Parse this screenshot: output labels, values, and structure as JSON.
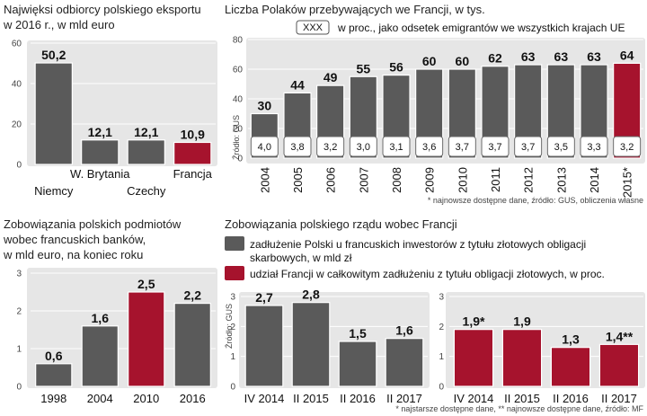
{
  "colors": {
    "gray": "#5a5a5a",
    "red": "#a6132d",
    "panel": "#e6e6e6",
    "grid": "#ffffff"
  },
  "chart_data": [
    {
      "id": "exports",
      "type": "bar",
      "title_lines": [
        "Najwięksi odbiorcy polskiego eksportu",
        "w 2016 r., w mld euro"
      ],
      "ylim": [
        0,
        60
      ],
      "yticks": [
        0,
        20,
        40,
        60
      ],
      "categories": [
        "Niemcy",
        "W. Brytania",
        "Czechy",
        "Francja"
      ],
      "values": [
        50.2,
        12.1,
        12.1,
        10.9
      ],
      "value_labels": [
        "50,2",
        "12,1",
        "12,1",
        "10,9"
      ],
      "highlight": [
        false,
        false,
        false,
        true
      ]
    },
    {
      "id": "poles_in_france",
      "type": "bar",
      "title_lines": [
        "Liczba Polaków przebywających we Francji, w tys."
      ],
      "legend_box": "XXX",
      "legend_text": "w proc., jako odsetek emigrantów we wszystkich krajach UE",
      "source_vertical": "Źródło: GUS",
      "ylim": [
        0,
        80
      ],
      "yticks": [
        0,
        20,
        40,
        60,
        80
      ],
      "categories": [
        "2004",
        "2005",
        "2006",
        "2007",
        "2008",
        "2009",
        "2010",
        "2011",
        "2012",
        "2013",
        "2014",
        "2015*"
      ],
      "values": [
        30,
        44,
        49,
        55,
        56,
        60,
        60,
        62,
        63,
        63,
        63,
        64
      ],
      "value_labels": [
        "30",
        "44",
        "49",
        "55",
        "56",
        "60",
        "60",
        "62",
        "63",
        "63",
        "63",
        "64"
      ],
      "percent_labels": [
        "4,0",
        "3,8",
        "3,2",
        "3,0",
        "3,1",
        "3,6",
        "3,7",
        "3,7",
        "3,7",
        "3,5",
        "3,3",
        "3,2"
      ],
      "highlight": [
        false,
        false,
        false,
        false,
        false,
        false,
        false,
        false,
        false,
        false,
        false,
        true
      ],
      "footnote": "* najnowsze dostępne dane, źródło: GUS, obliczenia własne"
    },
    {
      "id": "bank_liabilities",
      "type": "bar",
      "title_lines": [
        "Zobowiązania polskich podmiotów",
        "wobec francuskich banków,",
        "w mld euro, na koniec roku"
      ],
      "ylim": [
        0,
        3
      ],
      "yticks": [
        0,
        1,
        2,
        3
      ],
      "categories": [
        "1998",
        "2004",
        "2010",
        "2016"
      ],
      "values": [
        0.6,
        1.6,
        2.5,
        2.2
      ],
      "value_labels": [
        "0,6",
        "1,6",
        "2,5",
        "2,2"
      ],
      "highlight": [
        false,
        false,
        true,
        false
      ]
    },
    {
      "id": "gov_liabilities",
      "type": "bar",
      "title_lines": [
        "Zobowiązania polskiego rządu wobec Francji"
      ],
      "legend": [
        {
          "text_lines": [
            "zadłużenie Polski u francuskich inwestorów z tytułu złotowych obligacji",
            "skarbowych, w mld zł"
          ],
          "color": "gray"
        },
        {
          "text_lines": [
            "udział Francji w całkowitym zadłużeniu z tytułu obligacji złotowych, w proc."
          ],
          "color": "red"
        }
      ],
      "source_vertical": "Źródło: GUS",
      "panels": [
        {
          "ylim": [
            0,
            3
          ],
          "yticks": [
            0,
            1,
            2,
            3
          ],
          "color": "gray",
          "categories": [
            "IV 2014",
            "II 2015",
            "II 2016",
            "II 2017"
          ],
          "values": [
            2.7,
            2.8,
            1.5,
            1.6
          ],
          "value_labels": [
            "2,7",
            "2,8",
            "1,5",
            "1,6"
          ]
        },
        {
          "ylim": [
            0,
            3
          ],
          "yticks": [
            0,
            1,
            2,
            3
          ],
          "color": "red",
          "categories": [
            "IV 2014",
            "II 2015",
            "II 2016",
            "II 2017"
          ],
          "values": [
            1.9,
            1.9,
            1.3,
            1.4
          ],
          "value_labels": [
            "1,9*",
            "1,9",
            "1,3",
            "1,4**"
          ]
        }
      ],
      "footnote": "* najstarsze dostępne dane, ** najnowsze dostępne dane, źródło: MF"
    }
  ]
}
